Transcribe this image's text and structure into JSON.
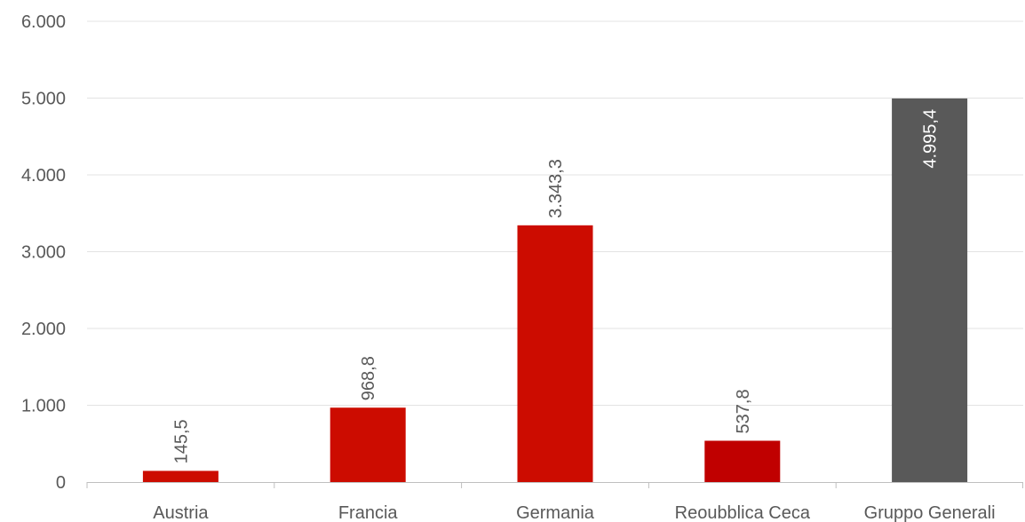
{
  "chart_data": {
    "type": "bar",
    "categories": [
      "Austria",
      "Francia",
      "Germania",
      "Reoubblica Ceca",
      "Gruppo Generali"
    ],
    "values": [
      145.5,
      968.8,
      3343.3,
      537.8,
      4995.4
    ],
    "data_labels": [
      "145,5",
      "968,8",
      "3.343,3",
      "537,8",
      "4.995,4"
    ],
    "y_ticks": [
      0,
      1000,
      2000,
      3000,
      4000,
      5000,
      6000
    ],
    "y_tick_labels": [
      "0",
      "1.000",
      "2.000",
      "3.000",
      "4.000",
      "5.000",
      "6.000"
    ],
    "ylim": [
      0,
      6000
    ],
    "grid": true,
    "legend": "none",
    "bar_colors": [
      "#cc0c00",
      "#cc0c00",
      "#cc0c00",
      "#c00000",
      "#595959"
    ],
    "label_colors": [
      "#595959",
      "#595959",
      "#595959",
      "#595959",
      "#ffffff"
    ],
    "label_position": [
      "outside",
      "outside",
      "outside",
      "outside",
      "inside"
    ]
  }
}
